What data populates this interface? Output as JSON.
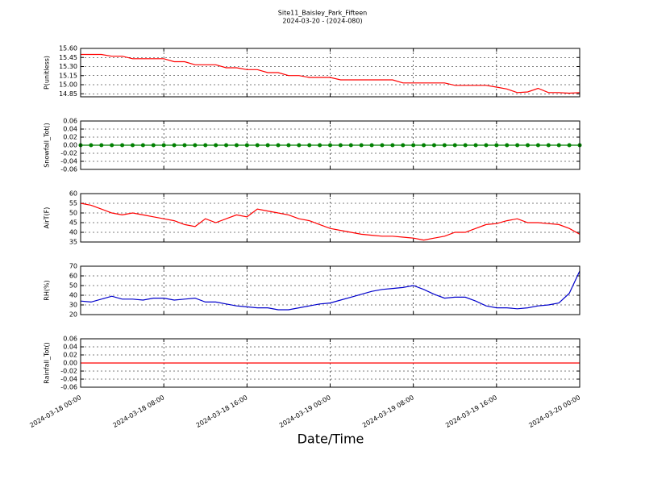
{
  "title": "Site11_Baisley_Park_Fifteen",
  "subtitle": "2024-03-20 - (2024-080)",
  "xlabel": "Date/Time",
  "x": [
    "2024-03-18 00:00",
    "2024-03-18 01:00",
    "2024-03-18 02:00",
    "2024-03-18 03:00",
    "2024-03-18 04:00",
    "2024-03-18 05:00",
    "2024-03-18 06:00",
    "2024-03-18 07:00",
    "2024-03-18 08:00",
    "2024-03-18 09:00",
    "2024-03-18 10:00",
    "2024-03-18 11:00",
    "2024-03-18 12:00",
    "2024-03-18 13:00",
    "2024-03-18 14:00",
    "2024-03-18 15:00",
    "2024-03-18 16:00",
    "2024-03-18 17:00",
    "2024-03-18 18:00",
    "2024-03-18 19:00",
    "2024-03-18 20:00",
    "2024-03-18 21:00",
    "2024-03-18 22:00",
    "2024-03-18 23:00",
    "2024-03-19 00:00",
    "2024-03-19 01:00",
    "2024-03-19 02:00",
    "2024-03-19 03:00",
    "2024-03-19 04:00",
    "2024-03-19 05:00",
    "2024-03-19 06:00",
    "2024-03-19 07:00",
    "2024-03-19 08:00",
    "2024-03-19 09:00",
    "2024-03-19 10:00",
    "2024-03-19 11:00",
    "2024-03-19 12:00",
    "2024-03-19 13:00",
    "2024-03-19 14:00",
    "2024-03-19 15:00",
    "2024-03-19 16:00",
    "2024-03-19 17:00",
    "2024-03-19 18:00",
    "2024-03-19 19:00",
    "2024-03-19 20:00",
    "2024-03-19 21:00",
    "2024-03-19 22:00",
    "2024-03-19 23:00",
    "2024-03-20 00:00"
  ],
  "xlim": [
    "2024-03-18 00:00",
    "2024-03-20 00:00"
  ],
  "xticks": [
    "2024-03-18 00:00",
    "2024-03-18 08:00",
    "2024-03-18 16:00",
    "2024-03-19 00:00",
    "2024-03-19 08:00",
    "2024-03-19 16:00",
    "2024-03-20 00:00"
  ],
  "chart_data": [
    {
      "type": "line",
      "ylabel": "P(unitless)",
      "color": "#ff0000",
      "grid": true,
      "ylim": [
        14.8,
        15.6
      ],
      "yticks": [
        {
          "value": 14.85,
          "label": "14.85"
        },
        {
          "value": 15.0,
          "label": "15.00"
        },
        {
          "value": 15.15,
          "label": "15.15"
        },
        {
          "value": 15.3,
          "label": "15.30"
        },
        {
          "value": 15.45,
          "label": "15.45"
        },
        {
          "value": 15.6,
          "label": "15.60"
        }
      ],
      "values": [
        15.5,
        15.5,
        15.5,
        15.47,
        15.47,
        15.43,
        15.43,
        15.43,
        15.43,
        15.38,
        15.38,
        15.33,
        15.33,
        15.33,
        15.28,
        15.28,
        15.25,
        15.25,
        15.2,
        15.2,
        15.15,
        15.15,
        15.12,
        15.12,
        15.12,
        15.08,
        15.08,
        15.08,
        15.08,
        15.08,
        15.08,
        15.03,
        15.03,
        15.03,
        15.03,
        15.03,
        14.99,
        14.99,
        14.99,
        14.99,
        14.96,
        14.93,
        14.87,
        14.88,
        14.94,
        14.87,
        14.87,
        14.86,
        14.87
      ]
    },
    {
      "type": "line",
      "ylabel": "Snowfall_Tot()",
      "color": "#008000",
      "markers": true,
      "grid": true,
      "ylim": [
        -0.06,
        0.06
      ],
      "yticks": [
        -0.06,
        -0.04,
        -0.02,
        {
          "value": 0,
          "label": "0.00"
        },
        0.02,
        0.04,
        0.06
      ],
      "values": [
        0,
        0,
        0,
        0,
        0,
        0,
        0,
        0,
        0,
        0,
        0,
        0,
        0,
        0,
        0,
        0,
        0,
        0,
        0,
        0,
        0,
        0,
        0,
        0,
        0,
        0,
        0,
        0,
        0,
        0,
        0,
        0,
        0,
        0,
        0,
        0,
        0,
        0,
        0,
        0,
        0,
        0,
        0,
        0,
        0,
        0,
        0,
        0,
        0
      ]
    },
    {
      "type": "line",
      "ylabel": "AirT(F)",
      "color": "#ff0000",
      "grid": true,
      "ylim": [
        35,
        60
      ],
      "yticks": [
        35,
        40,
        45,
        50,
        55,
        60
      ],
      "values": [
        55,
        54,
        52,
        50,
        49,
        50,
        49,
        48,
        47,
        46,
        44,
        43,
        47,
        45,
        47,
        49,
        48,
        52,
        51,
        50,
        49,
        47,
        46,
        44,
        42,
        41,
        40,
        39,
        38.5,
        38,
        38,
        37.5,
        37,
        36,
        37,
        38,
        40,
        40,
        42,
        44,
        44.5,
        46,
        47,
        45,
        45,
        44.5,
        44,
        42,
        39
      ]
    },
    {
      "type": "line",
      "ylabel": "RH(%)",
      "color": "#0000cc",
      "grid": true,
      "ylim": [
        20,
        70
      ],
      "yticks": [
        20,
        30,
        40,
        50,
        60,
        70
      ],
      "values": [
        34,
        33,
        36,
        39,
        36,
        36,
        35,
        37,
        37,
        35,
        36,
        37,
        33,
        33,
        31,
        29,
        28,
        27,
        27,
        25,
        25,
        27,
        29,
        31,
        32,
        35,
        38,
        41,
        44,
        46,
        47,
        48,
        50,
        46,
        41,
        37,
        38,
        38,
        34,
        29,
        27,
        27,
        26,
        27,
        29,
        30,
        32,
        42,
        65
      ]
    },
    {
      "type": "line",
      "ylabel": "Rainfall_Tot()",
      "color": "#ff0000",
      "grid": true,
      "ylim": [
        -0.06,
        0.06
      ],
      "yticks": [
        -0.06,
        -0.04,
        -0.02,
        {
          "value": 0,
          "label": "0.00"
        },
        0.02,
        0.04,
        0.06
      ],
      "values": [
        0,
        0,
        0,
        0,
        0,
        0,
        0,
        0,
        0,
        0,
        0,
        0,
        0,
        0,
        0,
        0,
        0,
        0,
        0,
        0,
        0,
        0,
        0,
        0,
        0,
        0,
        0,
        0,
        0,
        0,
        0,
        0,
        0,
        0,
        0,
        0,
        0,
        0,
        0,
        0,
        0,
        0,
        0,
        0,
        0,
        0,
        0,
        0,
        0
      ]
    }
  ]
}
